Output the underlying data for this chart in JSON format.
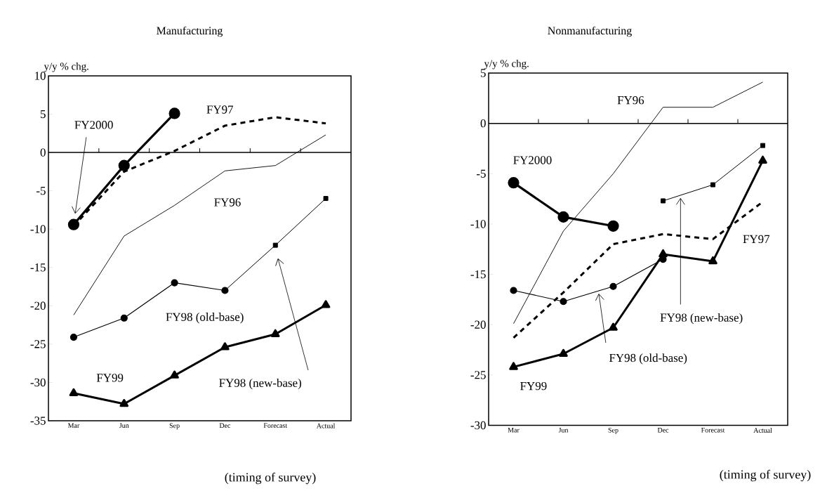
{
  "chart_data": [
    {
      "type": "line",
      "title": "Manufacturing",
      "ylabel": "y/y % chg.",
      "xlabel": "(timing of survey)",
      "categories": [
        "Mar",
        "Jun",
        "Sep",
        "Dec",
        "Forecast",
        "Actual"
      ],
      "ylim": [
        -35,
        10
      ],
      "yticks": [
        -35,
        -30,
        -25,
        -20,
        -15,
        -10,
        -5,
        0,
        5,
        10
      ],
      "grid": false,
      "ref_lines": [
        {
          "axis": "y",
          "value": 0
        }
      ],
      "series": [
        {
          "name": "FY96",
          "color": "#000000",
          "marker": "none",
          "line_style": "solid",
          "values": [
            -21.2,
            -10.9,
            -6.9,
            -2.4,
            -1.7,
            2.3
          ]
        },
        {
          "name": "FY97",
          "color": "#000000",
          "marker": "none",
          "line_style": "dashed",
          "values": [
            -9.6,
            -2.5,
            0.2,
            3.5,
            4.6,
            3.8
          ]
        },
        {
          "name": "FY98 (old-base)",
          "color": "#000000",
          "marker": "circle",
          "line_style": "solid",
          "values": [
            -24.1,
            -21.6,
            -17.0,
            -18.0,
            null,
            null
          ]
        },
        {
          "name": "FY98 (new-base)",
          "color": "#000000",
          "marker": "square",
          "line_style": "solid",
          "values": [
            null,
            null,
            null,
            -18.0,
            -12.1,
            -6.0
          ]
        },
        {
          "name": "FY99",
          "color": "#000000",
          "marker": "triangle",
          "line_style": "solid",
          "values": [
            -31.4,
            -32.8,
            -29.1,
            -25.4,
            -23.7,
            -19.9
          ]
        },
        {
          "name": "FY2000",
          "color": "#000000",
          "marker": "circle",
          "line_style": "solid",
          "values": [
            -9.4,
            -1.7,
            5.1,
            null,
            null,
            null
          ]
        }
      ]
    },
    {
      "type": "line",
      "title": "Nonmanufacturing",
      "ylabel": "y/y % chg.",
      "xlabel": "(timing of survey)",
      "categories": [
        "Mar",
        "Jun",
        "Sep",
        "Dec",
        "Forecast",
        "Actual"
      ],
      "ylim": [
        -30,
        5
      ],
      "yticks": [
        -30,
        -25,
        -20,
        -15,
        -10,
        -5,
        0,
        5
      ],
      "grid": false,
      "ref_lines": [
        {
          "axis": "y",
          "value": 0
        }
      ],
      "series": [
        {
          "name": "FY96",
          "color": "#000000",
          "marker": "none",
          "line_style": "solid",
          "values": [
            -19.9,
            -10.7,
            -5.0,
            1.6,
            1.6,
            4.1
          ]
        },
        {
          "name": "FY97",
          "color": "#000000",
          "marker": "none",
          "line_style": "dashed",
          "values": [
            -21.3,
            -16.8,
            -12.0,
            -11.0,
            -11.5,
            -7.8
          ]
        },
        {
          "name": "FY98 (old-base)",
          "color": "#000000",
          "marker": "circle",
          "line_style": "solid",
          "values": [
            -16.6,
            -17.7,
            -16.2,
            -13.5,
            null,
            null
          ]
        },
        {
          "name": "FY98 (new-base)",
          "color": "#000000",
          "marker": "square",
          "line_style": "solid",
          "values": [
            null,
            null,
            null,
            -7.7,
            -6.1,
            -2.2
          ]
        },
        {
          "name": "FY99",
          "color": "#000000",
          "marker": "triangle",
          "line_style": "solid",
          "values": [
            -24.2,
            -22.9,
            -20.3,
            -13.0,
            -13.7,
            -3.7
          ]
        },
        {
          "name": "FY2000",
          "color": "#000000",
          "marker": "circle",
          "line_style": "solid",
          "values": [
            -5.9,
            -9.3,
            -10.2,
            null,
            null,
            null
          ]
        }
      ]
    }
  ]
}
